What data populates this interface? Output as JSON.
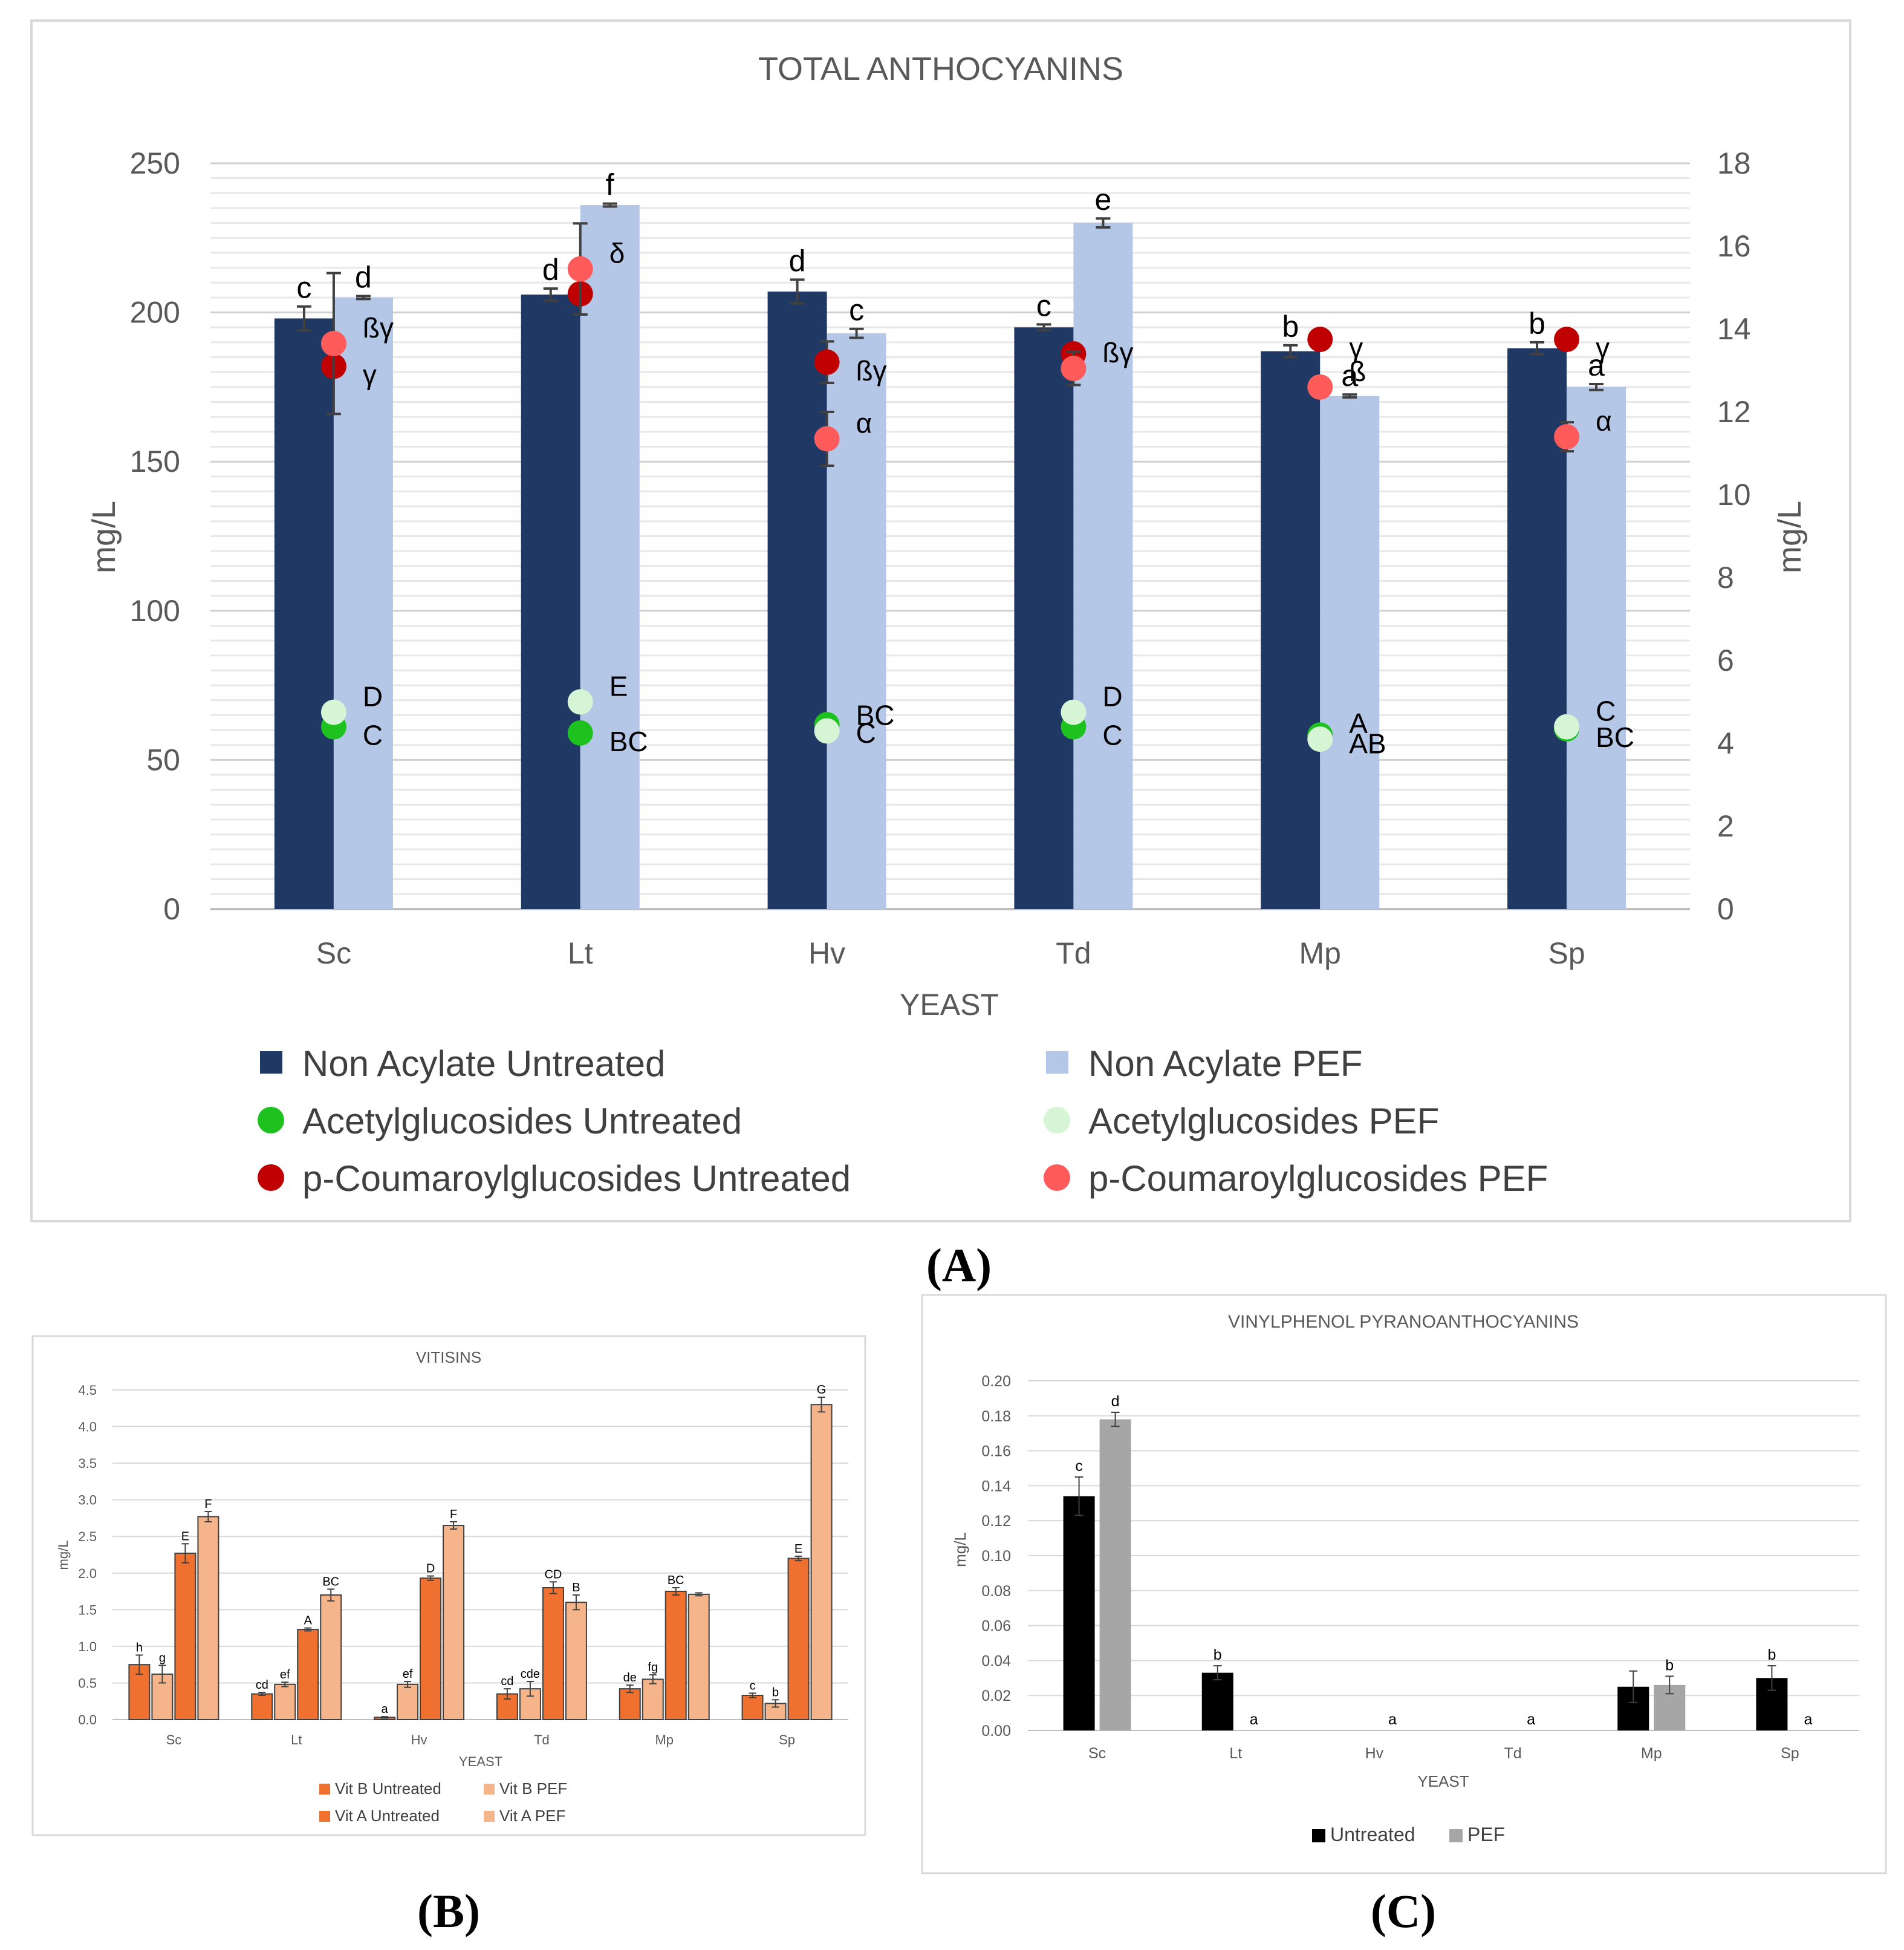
{
  "panels": [
    {
      "id": "A",
      "letter": "(A)",
      "chart_data": {
        "type": "bar",
        "title": "TOTAL ANTHOCYANINS",
        "xlabel": "YEAST",
        "ylabel": "mg/L",
        "y2label": "mg/L",
        "categories": [
          "Sc",
          "Lt",
          "Hv",
          "Td",
          "Mp",
          "Sp"
        ],
        "ylim": [
          0,
          250
        ],
        "yticks": [
          "0",
          "50",
          "100",
          "150",
          "200",
          "250"
        ],
        "y2lim": [
          0,
          18
        ],
        "y2ticks": [
          "0",
          "2",
          "4",
          "6",
          "8",
          "10",
          "12",
          "14",
          "16",
          "18"
        ],
        "grid": true,
        "legend_position": "bottom",
        "bar_series": [
          {
            "name": "Non Acylate Untreated",
            "color": "#203864",
            "values": [
              198,
              206,
              207,
              195,
              187,
              188
            ],
            "errors": [
              4,
              2,
              4,
              1,
              2,
              2
            ],
            "labels": [
              "c",
              "d",
              "d",
              "c",
              "b",
              "b"
            ]
          },
          {
            "name": "Non Acylate PEF",
            "color": "#b4c7e7",
            "values": [
              205,
              236,
              193,
              230,
              172,
              175
            ],
            "errors": [
              0.5,
              0.5,
              1.5,
              1.5,
              0.5,
              1
            ],
            "labels": [
              "d",
              "f",
              "c",
              "e",
              "a",
              "a"
            ]
          }
        ],
        "point_series": [
          {
            "name": "Acetylglucosides Untreated",
            "color": "#1ec21e",
            "values": [
              4.4,
              4.25,
              4.45,
              4.4,
              4.2,
              4.35
            ],
            "errors": [
              0,
              0,
              0,
              0,
              0,
              0
            ],
            "labels": [
              "C",
              "BC",
              "C",
              "C",
              "AB",
              "BC"
            ]
          },
          {
            "name": "Acetylglucosides PEF",
            "color": "#d5f5d5",
            "values": [
              4.75,
              5.0,
              4.3,
              4.75,
              4.1,
              4.4
            ],
            "errors": [
              0,
              0,
              0,
              0,
              0,
              0
            ],
            "labels": [
              "D",
              "E",
              "BC",
              "D",
              "A",
              "C"
            ]
          },
          {
            "name": "p-Coumaroylglucosides Untreated",
            "color": "#c00000",
            "values": [
              13.1,
              14.85,
              13.2,
              13.4,
              13.75,
              13.75
            ],
            "errors": [
              0,
              0,
              0.5,
              0,
              0,
              0
            ],
            "labels": [
              "γ",
              "",
              "ßγ",
              "",
              "γ",
              "γ"
            ]
          },
          {
            "name": "p-Coumaroylglucosides PEF",
            "color": "#ff5b5b",
            "values": [
              13.65,
              15.45,
              11.35,
              13.05,
              12.6,
              11.4
            ],
            "errors": [
              1.7,
              1.1,
              0.65,
              0.4,
              0,
              0.35
            ],
            "labels": [
              "ßγ",
              "δ",
              "α",
              "ßγ",
              "ß",
              "α"
            ]
          }
        ]
      }
    },
    {
      "id": "B",
      "letter": "(B)",
      "chart_data": {
        "type": "bar",
        "title": "VITISINS",
        "xlabel": "YEAST",
        "ylabel": "mg/L",
        "categories": [
          "Sc",
          "Lt",
          "Hv",
          "Td",
          "Mp",
          "Sp"
        ],
        "ylim": [
          0,
          4.5
        ],
        "yticks": [
          "0.0",
          "0.5",
          "1.0",
          "1.5",
          "2.0",
          "2.5",
          "3.0",
          "3.5",
          "4.0",
          "4.5"
        ],
        "grid": true,
        "legend_position": "bottom",
        "series": [
          {
            "name": "Vit B Untreated",
            "color": "#f07030",
            "values": [
              0.75,
              0.35,
              0.03,
              0.35,
              0.42,
              0.33
            ],
            "errors": [
              0.13,
              0.02,
              0.01,
              0.07,
              0.05,
              0.03
            ],
            "labels": [
              "h",
              "cd",
              "a",
              "cd",
              "de",
              "c"
            ]
          },
          {
            "name": "Vit B PEF",
            "color": "#f5b48a",
            "values": [
              0.62,
              0.48,
              0.48,
              0.42,
              0.55,
              0.22
            ],
            "errors": [
              0.12,
              0.03,
              0.04,
              0.1,
              0.06,
              0.05
            ],
            "labels": [
              "g",
              "ef",
              "ef",
              "cde",
              "fg",
              "b"
            ]
          },
          {
            "name": "Vit A Untreated",
            "color": "#f07030",
            "values": [
              2.27,
              1.23,
              1.93,
              1.8,
              1.75,
              2.2
            ],
            "errors": [
              0.13,
              0.02,
              0.03,
              0.08,
              0.05,
              0.03
            ],
            "labels": [
              "E",
              "A",
              "D",
              "CD",
              "BC",
              "E"
            ]
          },
          {
            "name": "Vit A PEF",
            "color": "#f5b48a",
            "values": [
              2.77,
              1.7,
              2.65,
              1.6,
              1.71,
              4.3
            ],
            "errors": [
              0.07,
              0.08,
              0.05,
              0.1,
              0.02,
              0.1
            ],
            "labels": [
              "F",
              "BC",
              "F",
              "B",
              "",
              "G"
            ]
          }
        ]
      }
    },
    {
      "id": "C",
      "letter": "(C)",
      "chart_data": {
        "type": "bar",
        "title": "VINYLPHENOL PYRANOANTHOCYANINS",
        "xlabel": "YEAST",
        "ylabel": "mg/L",
        "categories": [
          "Sc",
          "Lt",
          "Hv",
          "Td",
          "Mp",
          "Sp"
        ],
        "ylim": [
          0,
          0.2
        ],
        "yticks": [
          "0.00",
          "0.02",
          "0.04",
          "0.06",
          "0.08",
          "0.10",
          "0.12",
          "0.14",
          "0.16",
          "0.18",
          "0.20"
        ],
        "grid": true,
        "legend_position": "bottom",
        "series": [
          {
            "name": "Untreated",
            "color": "#000000",
            "values": [
              0.134,
              0.033,
              0,
              0,
              0.025,
              0.03
            ],
            "errors": [
              0.011,
              0.004,
              0,
              0,
              0.009,
              0.007
            ],
            "labels": [
              "c",
              "b",
              "",
              "",
              "",
              "b"
            ]
          },
          {
            "name": "PEF",
            "color": "#a6a6a6",
            "values": [
              0.178,
              0,
              0,
              0,
              0.026,
              0
            ],
            "errors": [
              0.004,
              0,
              0,
              0,
              0.005,
              0
            ],
            "labels": [
              "d",
              "a",
              "a",
              "a",
              "b",
              "a"
            ]
          }
        ]
      }
    }
  ]
}
